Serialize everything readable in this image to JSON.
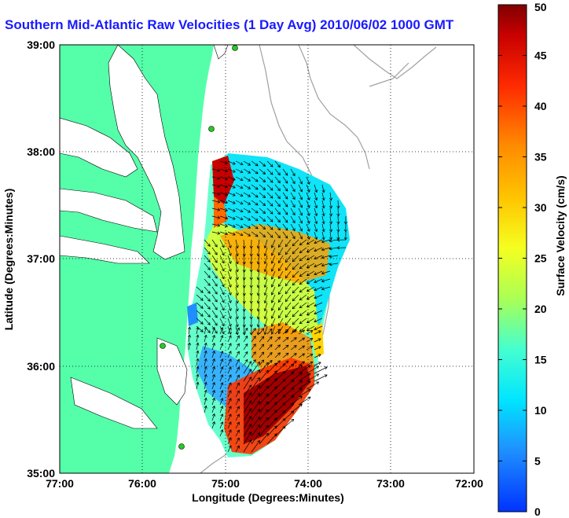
{
  "title": "Southern Mid-Atlantic Raw Velocities (1 Day Avg) 2010/06/02 1000 GMT",
  "map": {
    "xlabel": "Longitude (Degrees:Minutes)",
    "ylabel": "Latitude (Degrees:Minutes)",
    "lon_ticks": [
      "77:00",
      "76:00",
      "75:00",
      "74:00",
      "73:00",
      "72:00"
    ],
    "lat_ticks": [
      "39:00",
      "38:00",
      "37:00",
      "36:00",
      "35:00"
    ],
    "land_color": "#55ffaa",
    "water_color": "#ffffff",
    "contour_color": "#a0a0a0",
    "station_color": "#22cc22",
    "arrow_color": "#000000"
  },
  "colorbar": {
    "label": "Surface Velocity (cm/s)",
    "ticks": [
      "0",
      "5",
      "10",
      "15",
      "20",
      "25",
      "30",
      "35",
      "40",
      "45",
      "50"
    ],
    "min": 0,
    "max": 50
  }
}
